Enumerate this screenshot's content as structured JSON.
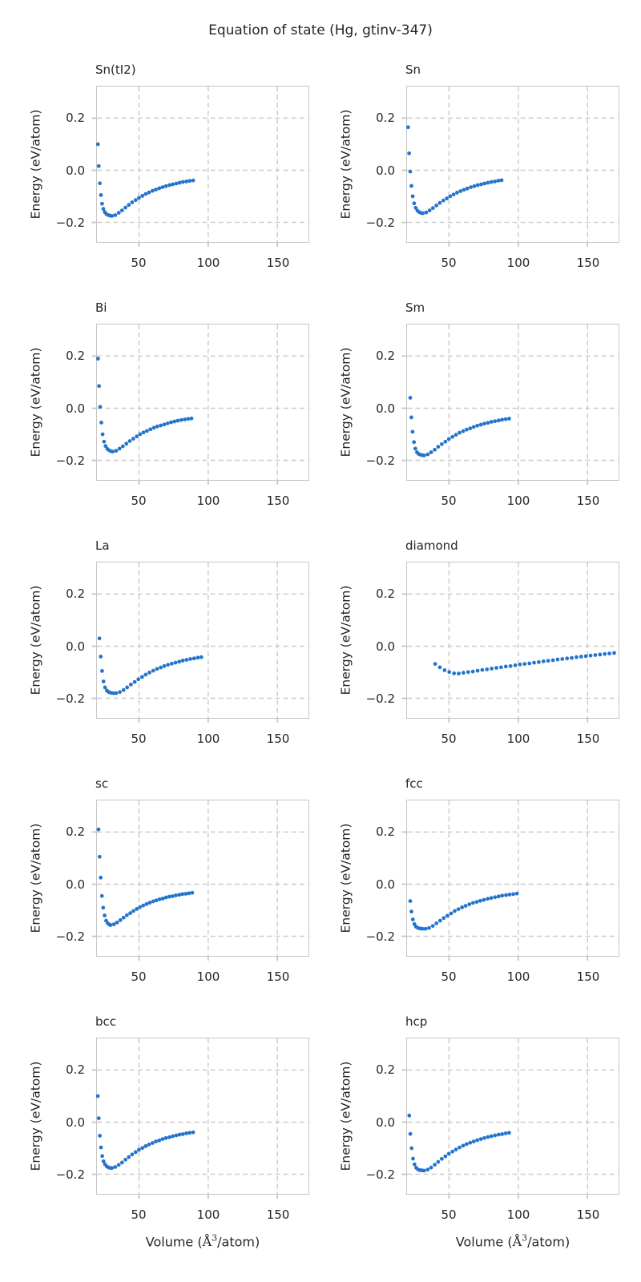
{
  "figure": {
    "suptitle": "Equation of state (Hg, gtinv-347)"
  },
  "axes": {
    "ylabel": "Energy (eV/atom)",
    "xlabel_parts": {
      "prefix": "Volume (",
      "unit": "Å",
      "exponent": "3",
      "suffix": "/atom)"
    },
    "x_ticks": [
      50,
      100,
      150
    ],
    "x_tick_labels": [
      "50",
      "100",
      "150"
    ],
    "y_ticks": [
      0.2,
      0.0,
      -0.2
    ],
    "y_tick_labels": [
      "0.2",
      "0.0",
      "−0.2"
    ],
    "xlim": [
      19.9,
      172.2
    ],
    "ylim": [
      -0.275,
      0.321
    ],
    "grid": "dashed"
  },
  "style": {
    "marker_color": "#2374cc",
    "grid_color": "#cccccc",
    "spine_color": "#c5c5c5",
    "text_color": "#262626",
    "background": "#ffffff"
  },
  "chart_data": [
    {
      "type": "scatter",
      "title": "Sn(tI2)",
      "x": [
        20.4,
        21.0,
        21.8,
        22.6,
        23.4,
        24.3,
        25.3,
        26.5,
        28.0,
        29.3,
        30.5,
        32.9,
        35.4,
        37.8,
        40.3,
        42.7,
        45.1,
        47.6,
        50.0,
        52.5,
        54.9,
        57.3,
        59.8,
        62.2,
        64.7,
        67.1,
        69.5,
        72.0,
        74.4,
        76.9,
        79.3,
        81.7,
        84.2,
        86.6,
        89.1
      ],
      "y": [
        0.1,
        0.016,
        -0.05,
        -0.095,
        -0.128,
        -0.148,
        -0.16,
        -0.168,
        -0.172,
        -0.174,
        -0.175,
        -0.172,
        -0.163,
        -0.154,
        -0.143,
        -0.133,
        -0.123,
        -0.114,
        -0.106,
        -0.098,
        -0.091,
        -0.085,
        -0.079,
        -0.074,
        -0.069,
        -0.065,
        -0.061,
        -0.057,
        -0.054,
        -0.051,
        -0.048,
        -0.045,
        -0.043,
        -0.041,
        -0.039
      ]
    },
    {
      "type": "scatter",
      "title": "Sn",
      "x": [
        20.5,
        21.2,
        22.0,
        22.9,
        23.8,
        24.8,
        25.9,
        27.2,
        28.6,
        30.0,
        31.0,
        33.5,
        36.0,
        38.4,
        40.9,
        43.4,
        45.9,
        48.4,
        50.8,
        53.3,
        55.8,
        58.3,
        60.8,
        63.2,
        65.7,
        68.2,
        70.7,
        73.2,
        75.6,
        78.1,
        80.6,
        83.1,
        85.6,
        88.0
      ],
      "y": [
        0.165,
        0.065,
        -0.005,
        -0.06,
        -0.1,
        -0.127,
        -0.144,
        -0.155,
        -0.161,
        -0.164,
        -0.165,
        -0.162,
        -0.154,
        -0.145,
        -0.135,
        -0.125,
        -0.116,
        -0.108,
        -0.1,
        -0.093,
        -0.086,
        -0.08,
        -0.075,
        -0.07,
        -0.065,
        -0.061,
        -0.057,
        -0.054,
        -0.051,
        -0.048,
        -0.045,
        -0.043,
        -0.04,
        -0.038
      ]
    },
    {
      "type": "scatter",
      "title": "Bi",
      "x": [
        20.5,
        21.2,
        22.0,
        22.9,
        23.8,
        24.8,
        25.9,
        27.2,
        28.6,
        30.0,
        31.0,
        33.5,
        36.0,
        38.4,
        40.9,
        43.4,
        45.9,
        48.4,
        50.8,
        53.3,
        55.8,
        58.3,
        60.8,
        63.2,
        65.7,
        68.2,
        70.7,
        73.2,
        75.6,
        78.1,
        80.6,
        83.1,
        85.6,
        88.0
      ],
      "y": [
        0.19,
        0.085,
        0.005,
        -0.055,
        -0.1,
        -0.128,
        -0.145,
        -0.156,
        -0.162,
        -0.165,
        -0.166,
        -0.163,
        -0.155,
        -0.146,
        -0.136,
        -0.126,
        -0.117,
        -0.108,
        -0.1,
        -0.093,
        -0.087,
        -0.081,
        -0.075,
        -0.07,
        -0.066,
        -0.062,
        -0.058,
        -0.054,
        -0.051,
        -0.048,
        -0.045,
        -0.043,
        -0.041,
        -0.039
      ]
    },
    {
      "type": "scatter",
      "title": "Sm",
      "x": [
        22.0,
        22.8,
        23.7,
        24.7,
        25.7,
        26.9,
        28.2,
        29.6,
        31.0,
        32.0,
        34.6,
        37.1,
        39.7,
        42.2,
        44.8,
        47.4,
        49.9,
        52.5,
        55.0,
        57.6,
        60.2,
        62.7,
        65.3,
        67.8,
        70.4,
        73.0,
        75.5,
        78.1,
        80.6,
        83.2,
        85.8,
        88.3,
        90.9,
        93.4
      ],
      "y": [
        0.04,
        -0.035,
        -0.09,
        -0.13,
        -0.155,
        -0.169,
        -0.176,
        -0.179,
        -0.18,
        -0.181,
        -0.177,
        -0.169,
        -0.159,
        -0.148,
        -0.138,
        -0.128,
        -0.118,
        -0.11,
        -0.102,
        -0.094,
        -0.088,
        -0.082,
        -0.077,
        -0.072,
        -0.067,
        -0.063,
        -0.059,
        -0.056,
        -0.052,
        -0.05,
        -0.047,
        -0.044,
        -0.042,
        -0.04
      ]
    },
    {
      "type": "scatter",
      "title": "La",
      "x": [
        21.5,
        22.4,
        23.4,
        24.4,
        25.5,
        26.8,
        28.2,
        29.8,
        31.6,
        33.5,
        36.2,
        38.9,
        41.5,
        44.2,
        46.9,
        49.6,
        52.3,
        54.9,
        57.6,
        60.3,
        63.0,
        65.7,
        68.3,
        71.0,
        73.7,
        76.4,
        79.1,
        81.7,
        84.4,
        87.1,
        89.8,
        92.5,
        95.1
      ],
      "y": [
        0.03,
        -0.04,
        -0.095,
        -0.135,
        -0.158,
        -0.17,
        -0.176,
        -0.179,
        -0.18,
        -0.18,
        -0.176,
        -0.168,
        -0.158,
        -0.147,
        -0.137,
        -0.127,
        -0.118,
        -0.109,
        -0.101,
        -0.094,
        -0.087,
        -0.082,
        -0.076,
        -0.071,
        -0.067,
        -0.063,
        -0.059,
        -0.055,
        -0.052,
        -0.049,
        -0.047,
        -0.044,
        -0.042
      ]
    },
    {
      "type": "scatter",
      "title": "diamond",
      "x": [
        40.0,
        43.4,
        46.8,
        50.2,
        53.6,
        57.0,
        60.4,
        63.8,
        67.2,
        70.6,
        74.0,
        77.4,
        80.8,
        84.2,
        87.6,
        91.0,
        94.4,
        97.8,
        101.2,
        104.6,
        108.0,
        111.4,
        114.8,
        118.2,
        121.6,
        125.0,
        128.4,
        131.8,
        135.2,
        138.6,
        142.0,
        145.4,
        148.8,
        152.2,
        155.6,
        159.0,
        162.4,
        165.8,
        169.2
      ],
      "y": [
        -0.068,
        -0.081,
        -0.092,
        -0.099,
        -0.104,
        -0.105,
        -0.102,
        -0.099,
        -0.097,
        -0.094,
        -0.091,
        -0.089,
        -0.086,
        -0.083,
        -0.081,
        -0.078,
        -0.076,
        -0.073,
        -0.07,
        -0.068,
        -0.066,
        -0.063,
        -0.061,
        -0.058,
        -0.056,
        -0.054,
        -0.051,
        -0.049,
        -0.047,
        -0.045,
        -0.042,
        -0.04,
        -0.038,
        -0.036,
        -0.034,
        -0.032,
        -0.03,
        -0.028,
        -0.026
      ]
    },
    {
      "type": "scatter",
      "title": "sc",
      "x": [
        20.8,
        21.6,
        22.4,
        23.3,
        24.2,
        25.2,
        26.3,
        27.5,
        28.7,
        29.5,
        31.9,
        34.2,
        36.6,
        38.9,
        41.3,
        43.7,
        46.0,
        48.4,
        50.7,
        53.1,
        55.5,
        57.8,
        60.2,
        62.5,
        64.9,
        67.3,
        69.6,
        72.0,
        74.3,
        76.7,
        79.1,
        81.4,
        83.8,
        86.1,
        88.5
      ],
      "y": [
        0.21,
        0.105,
        0.025,
        -0.045,
        -0.09,
        -0.12,
        -0.14,
        -0.15,
        -0.155,
        -0.157,
        -0.154,
        -0.147,
        -0.138,
        -0.128,
        -0.119,
        -0.111,
        -0.103,
        -0.095,
        -0.088,
        -0.082,
        -0.076,
        -0.071,
        -0.066,
        -0.062,
        -0.058,
        -0.055,
        -0.051,
        -0.048,
        -0.046,
        -0.043,
        -0.041,
        -0.038,
        -0.037,
        -0.035,
        -0.033
      ]
    },
    {
      "type": "scatter",
      "title": "fcc",
      "x": [
        22.0,
        22.9,
        23.9,
        25.0,
        26.2,
        27.6,
        29.1,
        30.8,
        33.0,
        35.6,
        38.3,
        40.9,
        43.6,
        46.2,
        48.8,
        51.5,
        54.1,
        56.8,
        59.4,
        62.0,
        64.7,
        67.3,
        70.0,
        72.6,
        75.2,
        77.9,
        80.5,
        83.2,
        85.8,
        88.4,
        91.1,
        93.7,
        96.4,
        99.0
      ],
      "y": [
        -0.065,
        -0.105,
        -0.135,
        -0.153,
        -0.163,
        -0.168,
        -0.17,
        -0.171,
        -0.171,
        -0.168,
        -0.16,
        -0.15,
        -0.14,
        -0.13,
        -0.121,
        -0.112,
        -0.103,
        -0.096,
        -0.089,
        -0.083,
        -0.077,
        -0.072,
        -0.068,
        -0.064,
        -0.06,
        -0.056,
        -0.053,
        -0.05,
        -0.047,
        -0.044,
        -0.042,
        -0.04,
        -0.038,
        -0.036
      ]
    },
    {
      "type": "scatter",
      "title": "bcc",
      "x": [
        20.3,
        21.0,
        21.8,
        22.6,
        23.5,
        24.4,
        25.5,
        26.8,
        28.2,
        29.5,
        30.5,
        32.9,
        35.4,
        37.8,
        40.3,
        42.7,
        45.1,
        47.6,
        50.0,
        52.5,
        54.9,
        57.3,
        59.8,
        62.2,
        64.7,
        67.1,
        69.5,
        72.0,
        74.4,
        76.9,
        79.3,
        81.7,
        84.2,
        86.6,
        89.1
      ],
      "y": [
        0.1,
        0.015,
        -0.052,
        -0.097,
        -0.13,
        -0.15,
        -0.162,
        -0.17,
        -0.174,
        -0.176,
        -0.176,
        -0.172,
        -0.164,
        -0.155,
        -0.144,
        -0.134,
        -0.124,
        -0.115,
        -0.106,
        -0.099,
        -0.092,
        -0.086,
        -0.08,
        -0.074,
        -0.07,
        -0.065,
        -0.061,
        -0.058,
        -0.054,
        -0.051,
        -0.048,
        -0.046,
        -0.043,
        -0.041,
        -0.039
      ]
    },
    {
      "type": "scatter",
      "title": "hcp",
      "x": [
        21.3,
        22.1,
        23.0,
        24.0,
        25.1,
        26.3,
        27.7,
        29.2,
        30.7,
        32.0,
        34.6,
        37.1,
        39.7,
        42.2,
        44.8,
        47.4,
        49.9,
        52.5,
        55.0,
        57.6,
        60.2,
        62.7,
        65.3,
        67.8,
        70.4,
        73.0,
        75.5,
        78.1,
        80.6,
        83.2,
        85.8,
        88.3,
        90.9,
        93.4
      ],
      "y": [
        0.025,
        -0.045,
        -0.1,
        -0.14,
        -0.162,
        -0.175,
        -0.182,
        -0.184,
        -0.185,
        -0.186,
        -0.182,
        -0.174,
        -0.163,
        -0.152,
        -0.141,
        -0.131,
        -0.121,
        -0.113,
        -0.105,
        -0.097,
        -0.09,
        -0.084,
        -0.079,
        -0.074,
        -0.069,
        -0.065,
        -0.061,
        -0.057,
        -0.054,
        -0.051,
        -0.048,
        -0.046,
        -0.043,
        -0.041
      ]
    }
  ]
}
